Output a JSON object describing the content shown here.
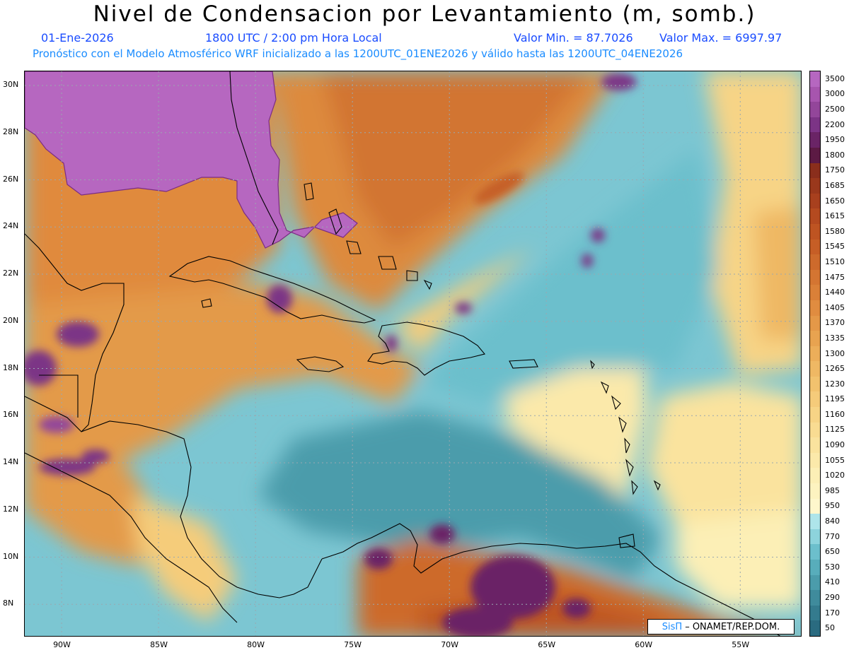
{
  "header": {
    "title": "Nivel de Condensacion por Levantamiento (m, somb.)",
    "date": "01-Ene-2026",
    "time": "1800 UTC / 2:00 pm Hora Local",
    "valmin": "Valor Min. = 87.7026",
    "valmax": "Valor Max. = 6997.97",
    "forecast": "Pronóstico con el Modelo Atmosférico WRF inicializado a las 1200UTC_01ENE2026 y válido hasta las  1200UTC_04ENE2026"
  },
  "map": {
    "lat_labels": [
      "30N",
      "28N",
      "26N",
      "24N",
      "22N",
      "20N",
      "18N",
      "16N",
      "14N",
      "12N",
      "10N",
      "8N"
    ],
    "lon_labels": [
      "90W",
      "85W",
      "80W",
      "75W",
      "70W",
      "65W",
      "60W",
      "55W"
    ],
    "lat_values": [
      30,
      28,
      26,
      24,
      22,
      20,
      18,
      16,
      14,
      12,
      10,
      8
    ],
    "lon_values": [
      -90,
      -85,
      -80,
      -75,
      -70,
      -65,
      -60,
      -55
    ],
    "lat_range": [
      6.6,
      30.6
    ],
    "lon_range": [
      -91.9,
      -51.8
    ]
  },
  "colorbar": {
    "labels": [
      "3500",
      "3000",
      "2500",
      "2200",
      "1950",
      "1800",
      "1750",
      "1685",
      "1650",
      "1615",
      "1580",
      "1545",
      "1510",
      "1475",
      "1440",
      "1405",
      "1370",
      "1335",
      "1300",
      "1265",
      "1230",
      "1195",
      "1160",
      "1125",
      "1090",
      "1055",
      "1020",
      "985",
      "950",
      "840",
      "770",
      "650",
      "530",
      "410",
      "290",
      "170",
      "50"
    ],
    "colors": [
      "#b667c0",
      "#a755ae",
      "#93469a",
      "#7c3486",
      "#6a2466",
      "#5c1a44",
      "#8a2e1c",
      "#9a381c",
      "#a8401e",
      "#b44a20",
      "#be5422",
      "#c65e26",
      "#cd6a2c",
      "#d47532",
      "#da8038",
      "#e08c40",
      "#e49848",
      "#e8a350",
      "#ecae5a",
      "#efb864",
      "#f2c26e",
      "#f5cb7a",
      "#f7d486",
      "#f9dc92",
      "#fae39e",
      "#fbe9aa",
      "#fcefb6",
      "#fdf3c0",
      "#fef7cc",
      "#aee5ea",
      "#8dd3dc",
      "#6cbfcc",
      "#58adbb",
      "#4b9cab",
      "#3f8b9c",
      "#347b8e",
      "#2a6b80"
    ]
  },
  "credit": {
    "sis": "SisΠ",
    "org": "– ONAMET/REP.DOM."
  }
}
